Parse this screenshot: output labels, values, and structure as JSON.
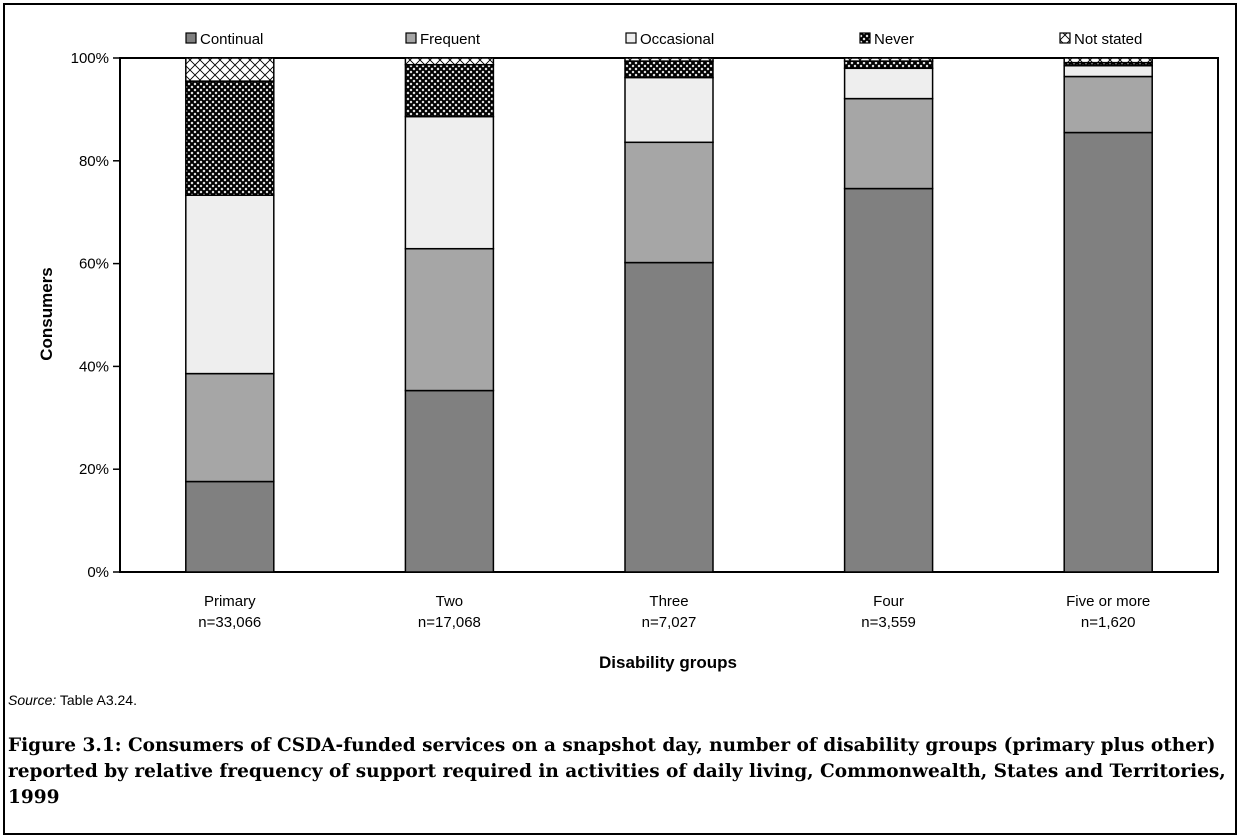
{
  "chart_data": {
    "type": "bar",
    "stacked": true,
    "xlabel": "Disability groups",
    "ylabel": "Consumers",
    "ylim": [
      0,
      100
    ],
    "yticks": [
      "0%",
      "20%",
      "40%",
      "60%",
      "80%",
      "100%"
    ],
    "legend_position": "top",
    "categories": [
      "Primary",
      "Two",
      "Three",
      "Four",
      "Five or more"
    ],
    "category_counts": [
      "n=33,066",
      "n=17,068",
      "n=7,027",
      "n=3,559",
      "n=1,620"
    ],
    "series": [
      {
        "name": "Continual",
        "color": "#808080",
        "pattern": "solid",
        "values": [
          17.6,
          35.3,
          60.2,
          74.6,
          85.5
        ]
      },
      {
        "name": "Frequent",
        "color": "#a6a6a6",
        "pattern": "solid",
        "values": [
          21.0,
          27.6,
          23.4,
          17.5,
          10.9
        ]
      },
      {
        "name": "Occasional",
        "color": "#eeeeee",
        "pattern": "solid",
        "values": [
          34.7,
          25.7,
          12.6,
          5.9,
          2.1
        ]
      },
      {
        "name": "Never",
        "color": "#000000",
        "pattern": "dense-crosshatch",
        "values": [
          22.2,
          10.1,
          3.2,
          1.4,
          0.6
        ]
      },
      {
        "name": "Not stated",
        "color": "#ffffff",
        "pattern": "crosshatch",
        "values": [
          4.5,
          1.3,
          0.6,
          0.6,
          0.9
        ]
      }
    ]
  },
  "source": {
    "label": "Source:",
    "text": "Table A3.24."
  },
  "caption": "Figure 3.1: Consumers of CSDA-funded services on a snapshot day, number of disability groups (primary plus other) reported by relative frequency of support required in activities of daily living, Commonwealth, States and Territories, 1999"
}
